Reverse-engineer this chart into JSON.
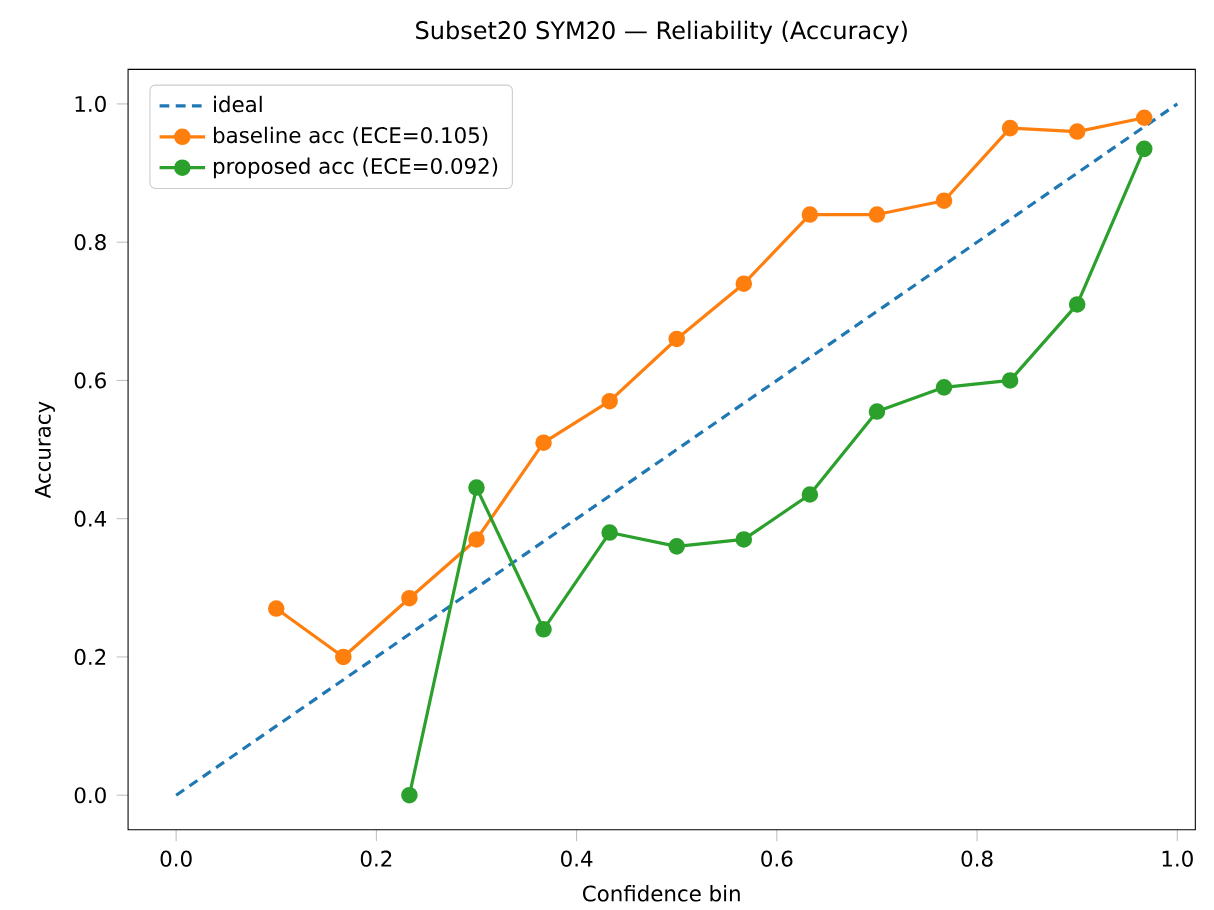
{
  "chart_data": {
    "type": "line",
    "title": "Subset20 SYM20 — Reliability (Accuracy)",
    "xlabel": "Confidence bin",
    "ylabel": "Accuracy",
    "xlim": [
      -0.048,
      1.018
    ],
    "ylim": [
      -0.05,
      1.05
    ],
    "xticks": [
      {
        "value": 0,
        "label": "0.0"
      },
      {
        "value": 0.2,
        "label": "0.2"
      },
      {
        "value": 0.4,
        "label": "0.4"
      },
      {
        "value": 0.6,
        "label": "0.6"
      },
      {
        "value": 0.8,
        "label": "0.8"
      },
      {
        "value": 1,
        "label": "1.0"
      }
    ],
    "yticks": [
      {
        "value": 0,
        "label": "0.0"
      },
      {
        "value": 0.2,
        "label": "0.2"
      },
      {
        "value": 0.4,
        "label": "0.4"
      },
      {
        "value": 0.6,
        "label": "0.6"
      },
      {
        "value": 0.8,
        "label": "0.8"
      },
      {
        "value": 1,
        "label": "1.0"
      }
    ],
    "legend": "top left",
    "grid": false,
    "series": [
      {
        "name": "ideal",
        "color": "#1f77b4",
        "line_style": "dashed",
        "marker": "none",
        "x": [
          0,
          1
        ],
        "values": [
          0,
          1
        ]
      },
      {
        "name": "baseline acc (ECE=0.105)",
        "color": "#ff7f0e",
        "line_style": "solid",
        "marker": "circle",
        "x": [
          0.1,
          0.167,
          0.233,
          0.3,
          0.367,
          0.433,
          0.5,
          0.567,
          0.633,
          0.7,
          0.767,
          0.833,
          0.9,
          0.967
        ],
        "values": [
          0.27,
          0.2,
          0.285,
          0.37,
          0.51,
          0.57,
          0.66,
          0.74,
          0.84,
          0.84,
          0.86,
          0.965,
          0.96,
          0.98
        ]
      },
      {
        "name": "proposed acc (ECE=0.092)",
        "color": "#2ca02c",
        "line_style": "solid",
        "marker": "circle",
        "x": [
          0.233,
          0.3,
          0.367,
          0.433,
          0.5,
          0.567,
          0.633,
          0.7,
          0.767,
          0.833,
          0.9,
          0.967
        ],
        "values": [
          0.0,
          0.445,
          0.24,
          0.38,
          0.36,
          0.37,
          0.435,
          0.555,
          0.59,
          0.6,
          0.71,
          0.935
        ]
      }
    ]
  }
}
